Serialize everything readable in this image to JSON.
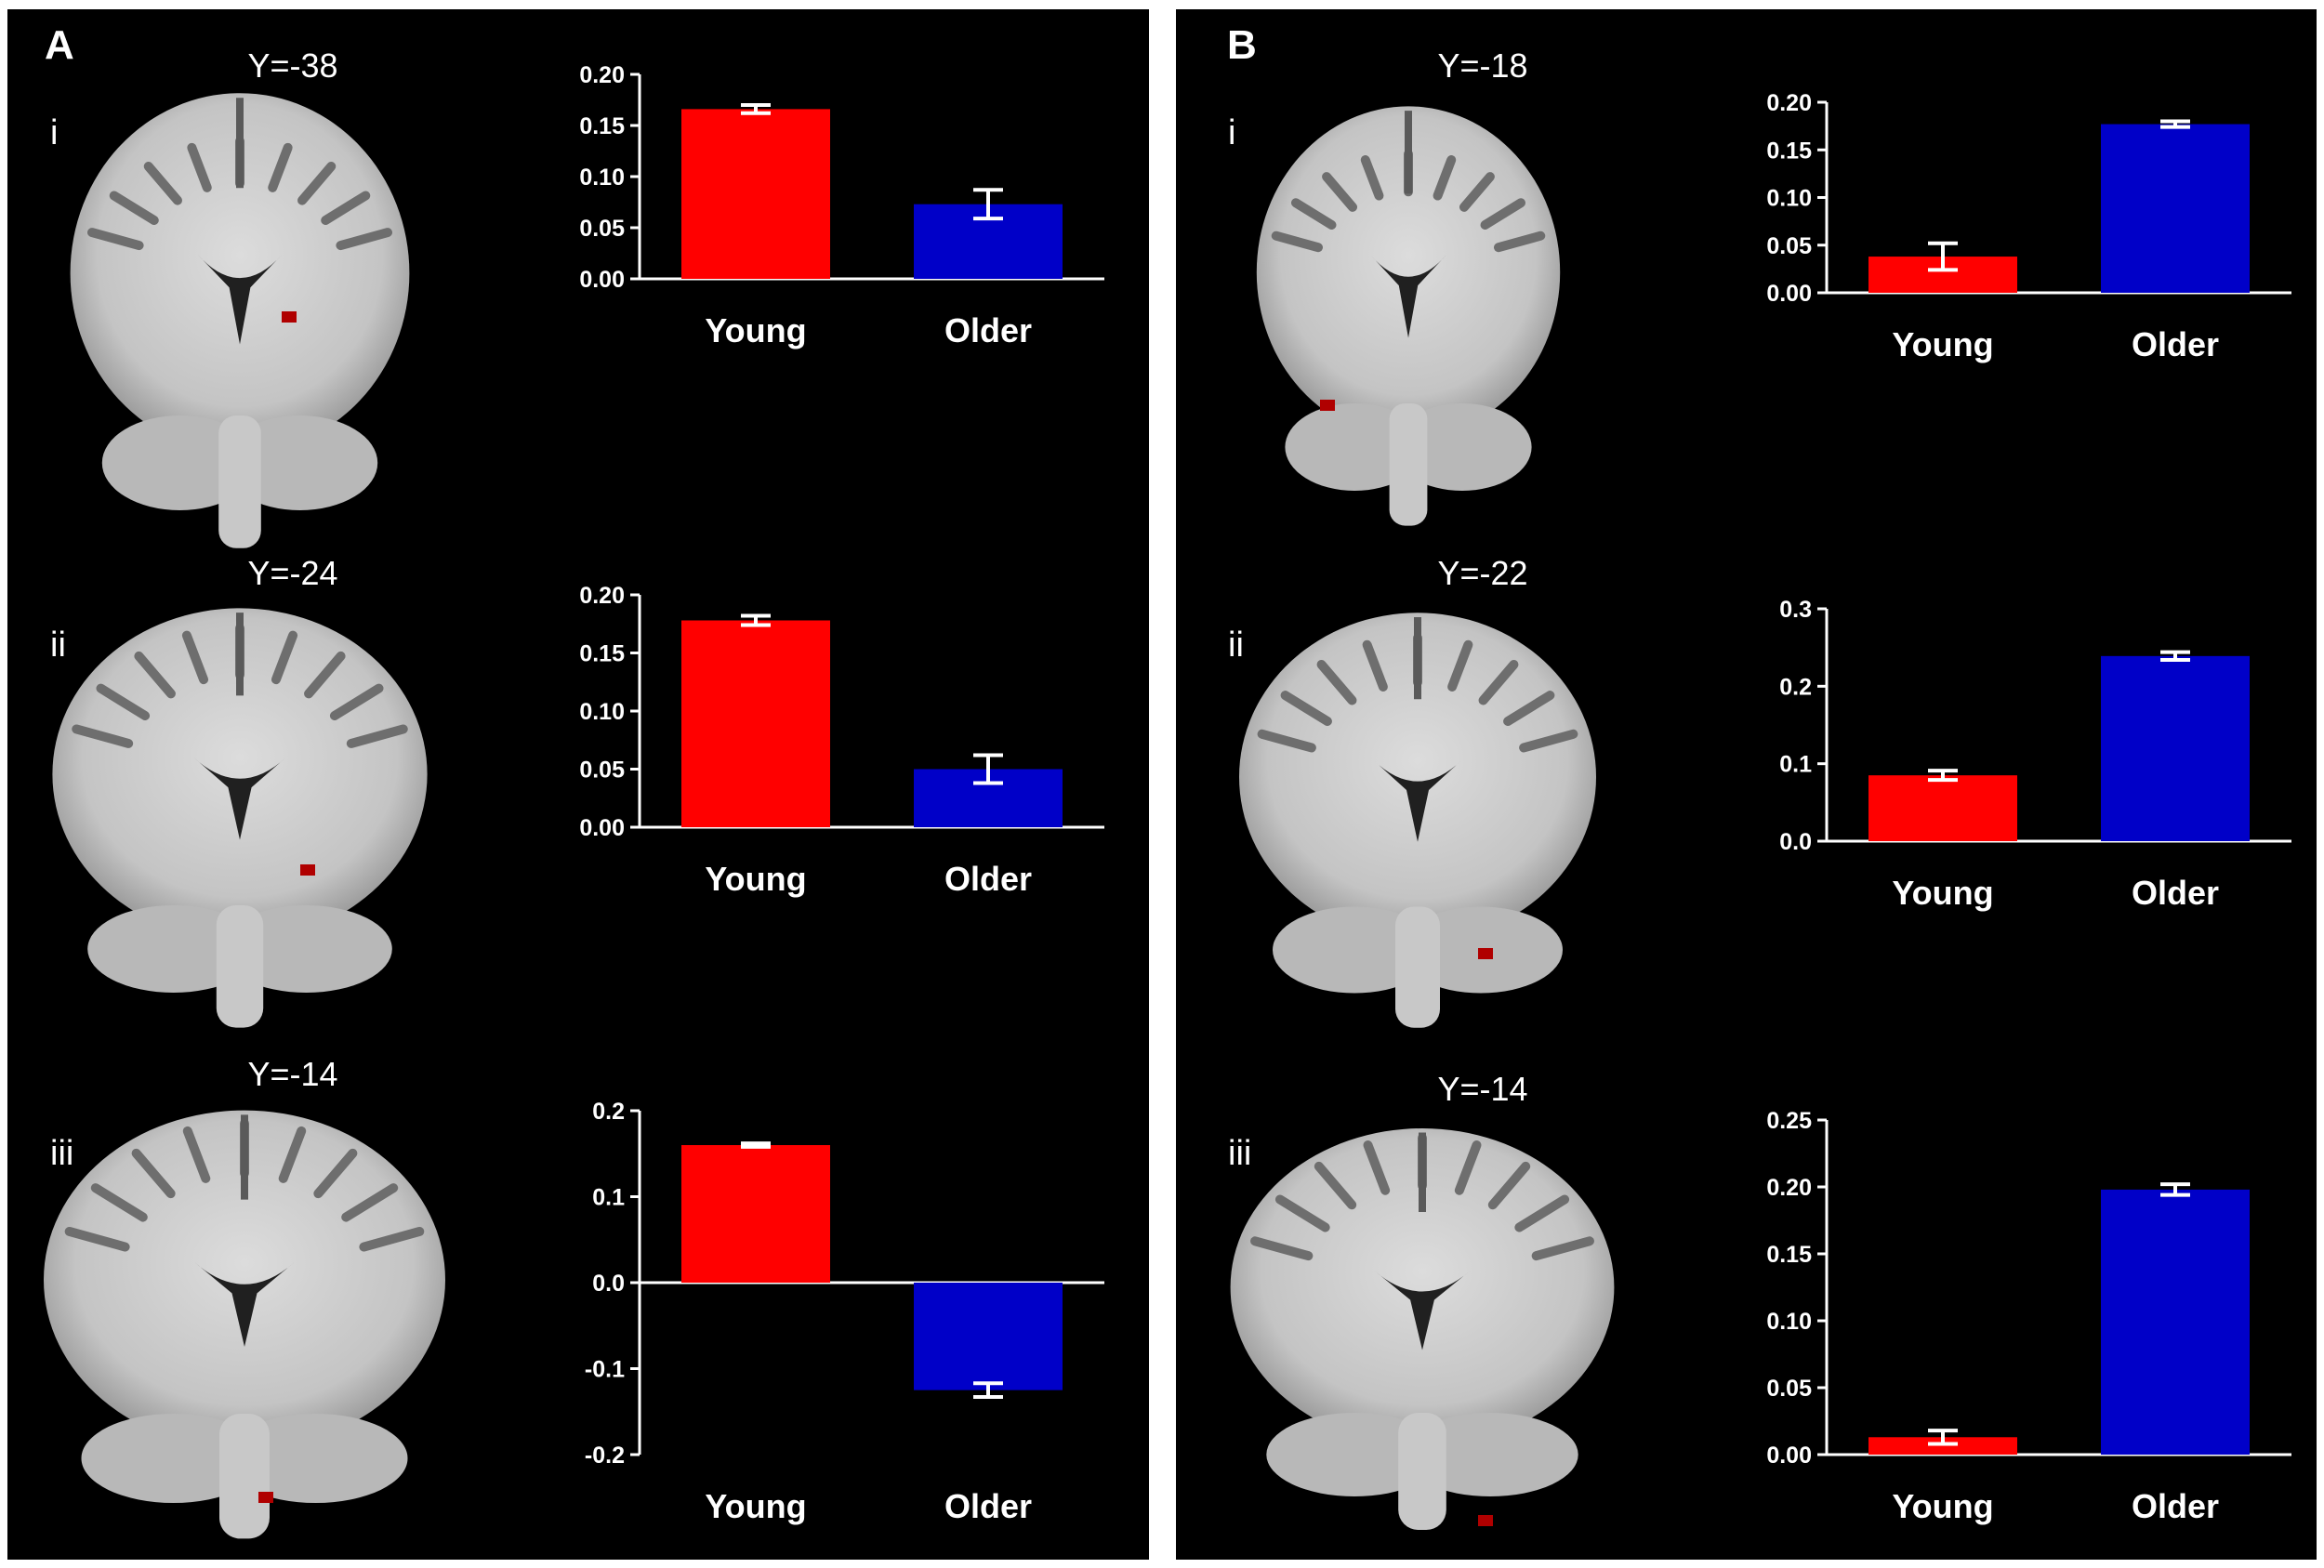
{
  "colors": {
    "background": "#000000",
    "young": "#ff0000",
    "older": "#0000c8",
    "axis": "#ffffff",
    "cluster": "#b00000"
  },
  "panels": [
    {
      "letter": "A",
      "rows": [
        {
          "roman": "i",
          "slice": "Y=-38"
        },
        {
          "roman": "ii",
          "slice": "Y=-24"
        },
        {
          "roman": "iii",
          "slice": "Y=-14"
        }
      ]
    },
    {
      "letter": "B",
      "rows": [
        {
          "roman": "i",
          "slice": "Y=-18"
        },
        {
          "roman": "ii",
          "slice": "Y=-22"
        },
        {
          "roman": "iii",
          "slice": "Y=-14"
        }
      ]
    }
  ],
  "chart_data": [
    {
      "panel": "A",
      "row": "i",
      "type": "bar",
      "categories": [
        "Young",
        "Older"
      ],
      "values": [
        0.166,
        0.073
      ],
      "errors": [
        0.004,
        0.014
      ],
      "ylim": [
        0,
        0.2
      ],
      "yticks": [
        "0.00",
        "0.05",
        "0.10",
        "0.15",
        "0.20"
      ],
      "colors": [
        "#ff0000",
        "#0000c8"
      ],
      "grid": false
    },
    {
      "panel": "A",
      "row": "ii",
      "type": "bar",
      "categories": [
        "Young",
        "Older"
      ],
      "values": [
        0.178,
        0.05
      ],
      "errors": [
        0.004,
        0.012
      ],
      "ylim": [
        0,
        0.2
      ],
      "yticks": [
        "0.00",
        "0.05",
        "0.10",
        "0.15",
        "0.20"
      ],
      "colors": [
        "#ff0000",
        "#0000c8"
      ],
      "grid": false
    },
    {
      "panel": "A",
      "row": "iii",
      "type": "bar",
      "categories": [
        "Young",
        "Older"
      ],
      "values": [
        0.16,
        -0.125
      ],
      "errors": [
        0.002,
        0.008
      ],
      "ylim": [
        -0.2,
        0.2
      ],
      "yticks": [
        "-0.2",
        "-0.1",
        "0.0",
        "0.1",
        "0.2"
      ],
      "colors": [
        "#ff0000",
        "#0000c8"
      ],
      "grid": false
    },
    {
      "panel": "B",
      "row": "i",
      "type": "bar",
      "categories": [
        "Young",
        "Older"
      ],
      "values": [
        0.038,
        0.177
      ],
      "errors": [
        0.014,
        0.003
      ],
      "ylim": [
        0,
        0.2
      ],
      "yticks": [
        "0.00",
        "0.05",
        "0.10",
        "0.15",
        "0.20"
      ],
      "colors": [
        "#ff0000",
        "#0000c8"
      ],
      "grid": false
    },
    {
      "panel": "B",
      "row": "ii",
      "type": "bar",
      "categories": [
        "Young",
        "Older"
      ],
      "values": [
        0.085,
        0.239
      ],
      "errors": [
        0.006,
        0.005
      ],
      "ylim": [
        0,
        0.3
      ],
      "yticks": [
        "0.0",
        "0.1",
        "0.2",
        "0.3"
      ],
      "colors": [
        "#ff0000",
        "#0000c8"
      ],
      "grid": false
    },
    {
      "panel": "B",
      "row": "iii",
      "type": "bar",
      "categories": [
        "Young",
        "Older"
      ],
      "values": [
        0.013,
        0.198
      ],
      "errors": [
        0.005,
        0.004
      ],
      "ylim": [
        0,
        0.25
      ],
      "yticks": [
        "0.00",
        "0.05",
        "0.10",
        "0.15",
        "0.20",
        "0.25"
      ],
      "colors": [
        "#ff0000",
        "#0000c8"
      ],
      "grid": false
    }
  ]
}
